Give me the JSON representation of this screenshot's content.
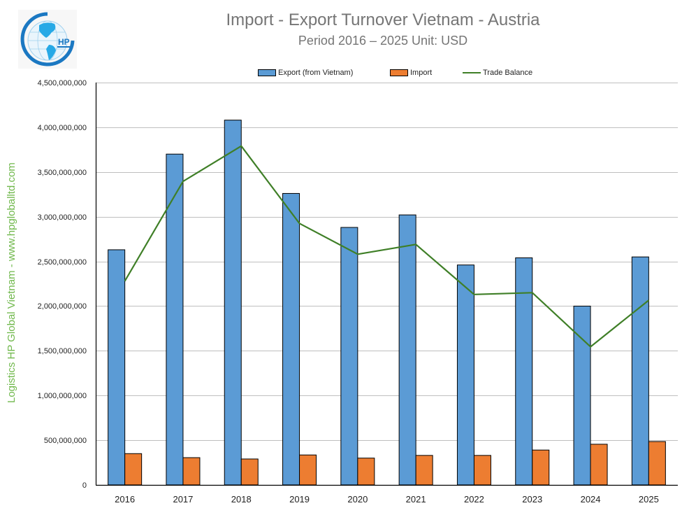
{
  "header": {
    "title": "Import - Export Turnover Vietnam - Austria",
    "subtitle": "Period 2016 – 2025  Unit: USD"
  },
  "logo": {
    "text": "HP",
    "name": "HP Global logo"
  },
  "watermark": "Logistics HP Global Vietnam - www.hpgloballtd.com",
  "legend": {
    "export_label": "Export (from Vietnam)",
    "import_label": "Import",
    "balance_label": "Trade Balance"
  },
  "colors": {
    "export": "#5b9bd5",
    "import": "#ed7d31",
    "balance": "#3f7f27",
    "grid": "#bfbfbf",
    "title": "#757575",
    "watermark": "#70b84c"
  },
  "y_ticks": [
    "0",
    "500,000,000",
    "1,000,000,000",
    "1,500,000,000",
    "2,000,000,000",
    "2,500,000,000",
    "3,000,000,000",
    "3,500,000,000",
    "4,000,000,000",
    "4,500,000,000"
  ],
  "chart_data": {
    "type": "bar",
    "title": "Import - Export Turnover Vietnam - Austria",
    "subtitle": "Period 2016 – 2025  Unit: USD",
    "xlabel": "",
    "ylabel": "",
    "ylim": [
      0,
      4500000000
    ],
    "grid": true,
    "legend_position": "top",
    "categories": [
      "2016",
      "2017",
      "2018",
      "2019",
      "2020",
      "2021",
      "2022",
      "2023",
      "2024",
      "2025"
    ],
    "series": [
      {
        "name": "Export (from Vietnam)",
        "type": "bar",
        "values": [
          2630000000,
          3700000000,
          4080000000,
          3260000000,
          2880000000,
          3020000000,
          2460000000,
          2540000000,
          2000000000,
          2550000000
        ]
      },
      {
        "name": "Import",
        "type": "bar",
        "values": [
          350000000,
          305000000,
          290000000,
          335000000,
          300000000,
          330000000,
          330000000,
          390000000,
          455000000,
          485000000
        ]
      },
      {
        "name": "Trade Balance",
        "type": "line",
        "values": [
          2280000000,
          3395000000,
          3790000000,
          2925000000,
          2580000000,
          2690000000,
          2130000000,
          2150000000,
          1545000000,
          2065000000
        ]
      }
    ]
  }
}
